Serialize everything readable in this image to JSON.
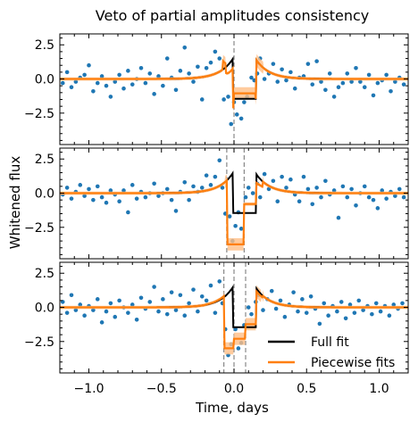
{
  "chart_data": {
    "type": "scatter",
    "title": "Veto of partial amplitudes consistency",
    "xlabel": "Time, days",
    "ylabel": "Whitened flux",
    "xlim": [
      -1.2,
      1.2
    ],
    "ylim": [
      -4.8,
      3.3
    ],
    "xticks": [
      -1.0,
      -0.5,
      0.0,
      0.5,
      1.0
    ],
    "xtick_labels": [
      "−1.0",
      "−0.5",
      "0.0",
      "0.5",
      "1.0"
    ],
    "yticks": [
      2.5,
      0.0,
      -2.5
    ],
    "ytick_labels": [
      "2.5",
      "0.0",
      "−2.5"
    ],
    "colors": {
      "points": "#1f77b4",
      "full_fit": "#000000",
      "piecewise": "#ff7f0e",
      "piecewise_band": "#ffbe86",
      "veto_lines": "#888888"
    },
    "legend": {
      "placement": "lower right",
      "panel": 3,
      "entries": [
        {
          "label": "Full fit",
          "color": "#000000"
        },
        {
          "label": "Piecewise fits",
          "color": "#ff7f0e"
        }
      ]
    },
    "panels": [
      {
        "veto_lines": [
          0.0
        ],
        "piece_boundaries": [
          -1.2,
          0.0,
          1.2
        ],
        "points": [
          [
            -1.18,
            -0.3
          ],
          [
            -1.15,
            0.5
          ],
          [
            -1.12,
            -0.6
          ],
          [
            -1.09,
            -0.2
          ],
          [
            -1.06,
            0.1
          ],
          [
            -1.03,
            0.3
          ],
          [
            -1.0,
            1.0
          ],
          [
            -0.97,
            -0.9
          ],
          [
            -0.94,
            -0.3
          ],
          [
            -0.91,
            0.2
          ],
          [
            -0.88,
            -0.5
          ],
          [
            -0.85,
            -1.3
          ],
          [
            -0.82,
            -0.2
          ],
          [
            -0.79,
            0.3
          ],
          [
            -0.76,
            -0.7
          ],
          [
            -0.73,
            0.6
          ],
          [
            -0.7,
            -0.4
          ],
          [
            -0.67,
            0.0
          ],
          [
            -0.64,
            0.8
          ],
          [
            -0.61,
            -0.3
          ],
          [
            -0.58,
            0.4
          ],
          [
            -0.55,
            -1.1
          ],
          [
            -0.52,
            0.2
          ],
          [
            -0.49,
            -0.5
          ],
          [
            -0.46,
            1.5
          ],
          [
            -0.43,
            0.1
          ],
          [
            -0.4,
            -0.8
          ],
          [
            -0.37,
            0.6
          ],
          [
            -0.34,
            2.3
          ],
          [
            -0.31,
            0.4
          ],
          [
            -0.28,
            -0.2
          ],
          [
            -0.25,
            0.9
          ],
          [
            -0.22,
            -1.5
          ],
          [
            -0.19,
            0.8
          ],
          [
            -0.16,
            1.2
          ],
          [
            -0.13,
            2.0
          ],
          [
            -0.1,
            1.5
          ],
          [
            -0.07,
            -1.5
          ],
          [
            -0.04,
            -1.3
          ],
          [
            -0.02,
            -3.3
          ],
          [
            0.0,
            -1.7
          ],
          [
            0.02,
            -2.6
          ],
          [
            0.05,
            -2.9
          ],
          [
            0.07,
            -1.7
          ],
          [
            0.09,
            -1.3
          ],
          [
            0.12,
            0.1
          ],
          [
            0.14,
            -0.1
          ],
          [
            0.16,
            0.4
          ],
          [
            0.18,
            1.5
          ],
          [
            0.21,
            0.0
          ],
          [
            0.24,
            0.4
          ],
          [
            0.27,
            1.1
          ],
          [
            0.3,
            -0.2
          ],
          [
            0.33,
            0.7
          ],
          [
            0.36,
            -0.1
          ],
          [
            0.39,
            0.5
          ],
          [
            0.42,
            -0.7
          ],
          [
            0.45,
            0.1
          ],
          [
            0.48,
            0.2
          ],
          [
            0.51,
            1.1
          ],
          [
            0.54,
            -0.4
          ],
          [
            0.57,
            1.3
          ],
          [
            0.6,
            -0.2
          ],
          [
            0.63,
            -0.8
          ],
          [
            0.66,
            0.4
          ],
          [
            0.69,
            -1.3
          ],
          [
            0.72,
            -0.6
          ],
          [
            0.75,
            -0.3
          ],
          [
            0.78,
            0.4
          ],
          [
            0.81,
            -0.2
          ],
          [
            0.84,
            0.8
          ],
          [
            0.87,
            -0.2
          ],
          [
            0.9,
            -0.6
          ],
          [
            0.93,
            0.3
          ],
          [
            0.96,
            -1.2
          ],
          [
            0.99,
            -0.3
          ],
          [
            1.02,
            -0.1
          ],
          [
            1.05,
            0.3
          ],
          [
            1.08,
            -0.9
          ],
          [
            1.11,
            -0.2
          ],
          [
            1.14,
            0.1
          ],
          [
            1.17,
            -0.4
          ]
        ]
      },
      {
        "veto_lines": [
          -0.05,
          0.07
        ],
        "piece_boundaries": [
          -1.2,
          -0.05,
          0.07,
          1.2
        ],
        "points": [
          [
            -1.18,
            -0.1
          ],
          [
            -1.15,
            0.4
          ],
          [
            -1.12,
            -0.4
          ],
          [
            -1.09,
            0.1
          ],
          [
            -1.06,
            0.6
          ],
          [
            -1.03,
            -0.2
          ],
          [
            -1.0,
            0.3
          ],
          [
            -0.97,
            -0.5
          ],
          [
            -0.94,
            0.5
          ],
          [
            -0.91,
            -0.3
          ],
          [
            -0.88,
            -0.7
          ],
          [
            -0.85,
            0.2
          ],
          [
            -0.82,
            -0.1
          ],
          [
            -0.79,
            -0.6
          ],
          [
            -0.76,
            0.2
          ],
          [
            -0.73,
            -1.4
          ],
          [
            -0.7,
            0.6
          ],
          [
            -0.67,
            -0.4
          ],
          [
            -0.64,
            0.1
          ],
          [
            -0.61,
            -0.3
          ],
          [
            -0.58,
            0.0
          ],
          [
            -0.55,
            0.7
          ],
          [
            -0.52,
            -0.2
          ],
          [
            -0.49,
            0.0
          ],
          [
            -0.46,
            0.3
          ],
          [
            -0.43,
            -0.5
          ],
          [
            -0.4,
            -1.3
          ],
          [
            -0.37,
            0.1
          ],
          [
            -0.34,
            0.8
          ],
          [
            -0.31,
            -0.5
          ],
          [
            -0.28,
            0.5
          ],
          [
            -0.25,
            0.1
          ],
          [
            -0.22,
            0.4
          ],
          [
            -0.19,
            1.3
          ],
          [
            -0.16,
            0.6
          ],
          [
            -0.13,
            1.2
          ],
          [
            -0.1,
            2.4
          ],
          [
            -0.08,
            0.4
          ],
          [
            -0.06,
            -1.5
          ],
          [
            -0.03,
            -1.7
          ],
          [
            -0.01,
            -3.5
          ],
          [
            0.01,
            -2.4
          ],
          [
            0.03,
            -1.4
          ],
          [
            0.05,
            -2.6
          ],
          [
            0.08,
            -0.3
          ],
          [
            0.1,
            0.4
          ],
          [
            0.13,
            0.0
          ],
          [
            0.16,
            0.7
          ],
          [
            0.18,
            -0.3
          ],
          [
            0.21,
            1.4
          ],
          [
            0.24,
            0.3
          ],
          [
            0.27,
            0.9
          ],
          [
            0.3,
            -0.6
          ],
          [
            0.33,
            1.2
          ],
          [
            0.36,
            0.4
          ],
          [
            0.39,
            1.0
          ],
          [
            0.42,
            -0.1
          ],
          [
            0.45,
            -0.6
          ],
          [
            0.48,
            1.2
          ],
          [
            0.51,
            0.3
          ],
          [
            0.54,
            -0.8
          ],
          [
            0.57,
            0.4
          ],
          [
            0.6,
            -0.3
          ],
          [
            0.63,
            0.9
          ],
          [
            0.66,
            -0.1
          ],
          [
            0.69,
            0.2
          ],
          [
            0.72,
            -1.8
          ],
          [
            0.75,
            0.5
          ],
          [
            0.78,
            -0.3
          ],
          [
            0.81,
            0.3
          ],
          [
            0.84,
            -0.9
          ],
          [
            0.87,
            0.0
          ],
          [
            0.9,
            0.5
          ],
          [
            0.93,
            -0.3
          ],
          [
            0.96,
            -0.5
          ],
          [
            0.99,
            -1.1
          ],
          [
            1.02,
            0.2
          ],
          [
            1.05,
            -0.4
          ],
          [
            1.08,
            0.1
          ],
          [
            1.11,
            -0.2
          ],
          [
            1.14,
            0.3
          ],
          [
            1.17,
            -0.3
          ]
        ]
      },
      {
        "veto_lines": [
          -0.07,
          0.0,
          0.08
        ],
        "piece_boundaries": [
          -1.2,
          -0.07,
          0.0,
          0.08,
          1.2
        ],
        "points": [
          [
            -1.18,
            0.4
          ],
          [
            -1.15,
            -0.4
          ],
          [
            -1.12,
            0.9
          ],
          [
            -1.09,
            -0.2
          ],
          [
            -1.06,
            0.2
          ],
          [
            -1.03,
            -0.6
          ],
          [
            -1.0,
            0.1
          ],
          [
            -0.97,
            -0.2
          ],
          [
            -0.94,
            0.6
          ],
          [
            -0.91,
            -1.1
          ],
          [
            -0.88,
            -0.3
          ],
          [
            -0.85,
            0.3
          ],
          [
            -0.82,
            -0.7
          ],
          [
            -0.79,
            0.5
          ],
          [
            -0.76,
            0.0
          ],
          [
            -0.73,
            -0.4
          ],
          [
            -0.7,
            0.2
          ],
          [
            -0.67,
            -0.9
          ],
          [
            -0.64,
            0.7
          ],
          [
            -0.61,
            -0.1
          ],
          [
            -0.58,
            0.4
          ],
          [
            -0.55,
            1.5
          ],
          [
            -0.52,
            -0.3
          ],
          [
            -0.49,
            0.6
          ],
          [
            -0.46,
            -0.5
          ],
          [
            -0.43,
            1.1
          ],
          [
            -0.4,
            -0.2
          ],
          [
            -0.37,
            0.9
          ],
          [
            -0.34,
            -0.6
          ],
          [
            -0.31,
            0.3
          ],
          [
            -0.28,
            1.3
          ],
          [
            -0.25,
            -0.3
          ],
          [
            -0.22,
            0.8
          ],
          [
            -0.19,
            0.5
          ],
          [
            -0.16,
            1.6
          ],
          [
            -0.13,
            -0.4
          ],
          [
            -0.1,
            1.9
          ],
          [
            -0.08,
            0.3
          ],
          [
            -0.06,
            -1.6
          ],
          [
            -0.04,
            -3.5
          ],
          [
            -0.02,
            -2.7
          ],
          [
            0.01,
            -1.6
          ],
          [
            0.03,
            -3.0
          ],
          [
            0.05,
            -2.6
          ],
          [
            0.07,
            -1.3
          ],
          [
            0.1,
            0.0
          ],
          [
            0.12,
            -0.5
          ],
          [
            0.15,
            0.4
          ],
          [
            0.17,
            0.9
          ],
          [
            0.2,
            -0.2
          ],
          [
            0.23,
            0.6
          ],
          [
            0.26,
            1.2
          ],
          [
            0.29,
            -0.1
          ],
          [
            0.32,
            0.5
          ],
          [
            0.35,
            -0.7
          ],
          [
            0.38,
            0.2
          ],
          [
            0.41,
            1.1
          ],
          [
            0.44,
            -0.3
          ],
          [
            0.47,
            0.6
          ],
          [
            0.5,
            -0.4
          ],
          [
            0.53,
            0.8
          ],
          [
            0.56,
            -0.1
          ],
          [
            0.59,
            -1.2
          ],
          [
            0.62,
            0.3
          ],
          [
            0.65,
            -0.6
          ],
          [
            0.68,
            0.1
          ],
          [
            0.71,
            -0.3
          ],
          [
            0.74,
            0.4
          ],
          [
            0.77,
            -0.8
          ],
          [
            0.8,
            0.2
          ],
          [
            0.83,
            -0.4
          ],
          [
            0.86,
            0.5
          ],
          [
            0.89,
            -0.2
          ],
          [
            0.92,
            0.1
          ],
          [
            0.95,
            -0.5
          ],
          [
            0.98,
            0.3
          ],
          [
            1.01,
            -0.3
          ],
          [
            1.04,
            0.1
          ],
          [
            1.07,
            -0.6
          ],
          [
            1.1,
            0.2
          ],
          [
            1.13,
            -0.1
          ],
          [
            1.16,
            0.3
          ]
        ]
      }
    ]
  }
}
